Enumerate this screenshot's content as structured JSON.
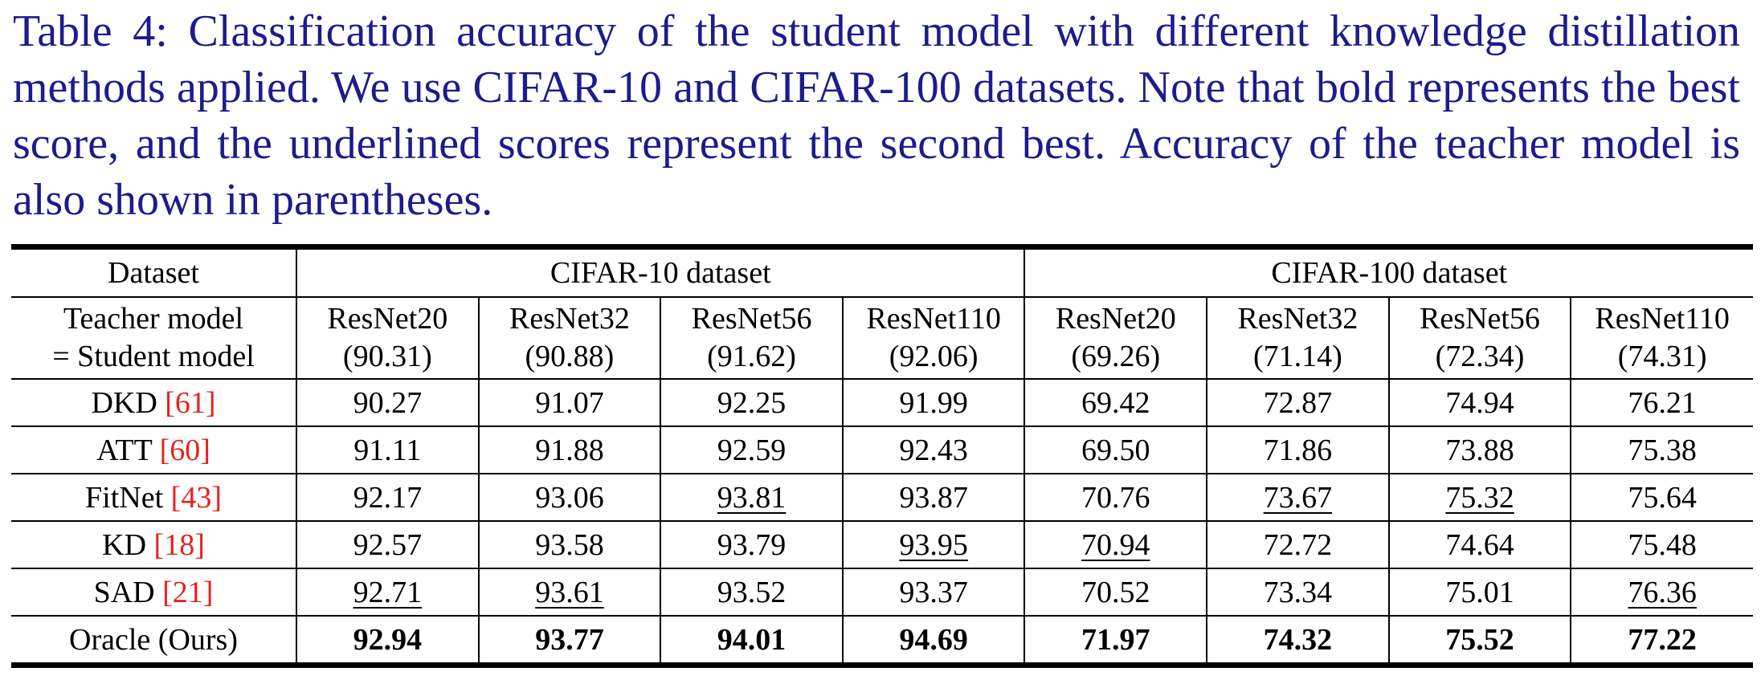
{
  "caption": "Table 4: Classification accuracy of the student model with different knowledge distillation methods applied. We use CIFAR-10 and CIFAR-100 datasets. Note that bold represents the best score, and the underlined scores represent the second best. Accuracy of the teacher model is also shown in parentheses.",
  "table": {
    "dataset_label": "Dataset",
    "cifar10_label": "CIFAR-10 dataset",
    "cifar100_label": "CIFAR-100 dataset",
    "teacher_label_line1": "Teacher model",
    "teacher_label_line2": "= Student model",
    "models": [
      {
        "name": "ResNet20",
        "acc": "(90.31)"
      },
      {
        "name": "ResNet32",
        "acc": "(90.88)"
      },
      {
        "name": "ResNet56",
        "acc": "(91.62)"
      },
      {
        "name": "ResNet110",
        "acc": "(92.06)"
      },
      {
        "name": "ResNet20",
        "acc": "(69.26)"
      },
      {
        "name": "ResNet32",
        "acc": "(71.14)"
      },
      {
        "name": "ResNet56",
        "acc": "(72.34)"
      },
      {
        "name": "ResNet110",
        "acc": "(74.31)"
      }
    ],
    "rows": [
      {
        "method": "DKD",
        "ref": "[61]",
        "values": [
          "90.27",
          "91.07",
          "92.25",
          "91.99",
          "69.42",
          "72.87",
          "74.94",
          "76.21"
        ]
      },
      {
        "method": "ATT",
        "ref": "[60]",
        "values": [
          "91.11",
          "91.88",
          "92.59",
          "92.43",
          "69.50",
          "71.86",
          "73.88",
          "75.38"
        ]
      },
      {
        "method": "FitNet",
        "ref": "[43]",
        "values": [
          "92.17",
          "93.06",
          "93.81",
          "93.87",
          "70.76",
          "73.67",
          "75.32",
          "75.64"
        ]
      },
      {
        "method": "KD",
        "ref": "[18]",
        "values": [
          "92.57",
          "93.58",
          "93.79",
          "93.95",
          "70.94",
          "72.72",
          "74.64",
          "75.48"
        ]
      },
      {
        "method": "SAD",
        "ref": "[21]",
        "values": [
          "92.71",
          "93.61",
          "93.52",
          "93.37",
          "70.52",
          "73.34",
          "75.01",
          "76.36"
        ]
      }
    ],
    "oracle": {
      "method": "Oracle (Ours)",
      "values": [
        "92.94",
        "93.77",
        "94.01",
        "94.69",
        "71.97",
        "74.32",
        "75.52",
        "77.22"
      ]
    }
  },
  "colors": {
    "caption_text": "#1c1c8c",
    "citation_ref": "#e5231b"
  }
}
